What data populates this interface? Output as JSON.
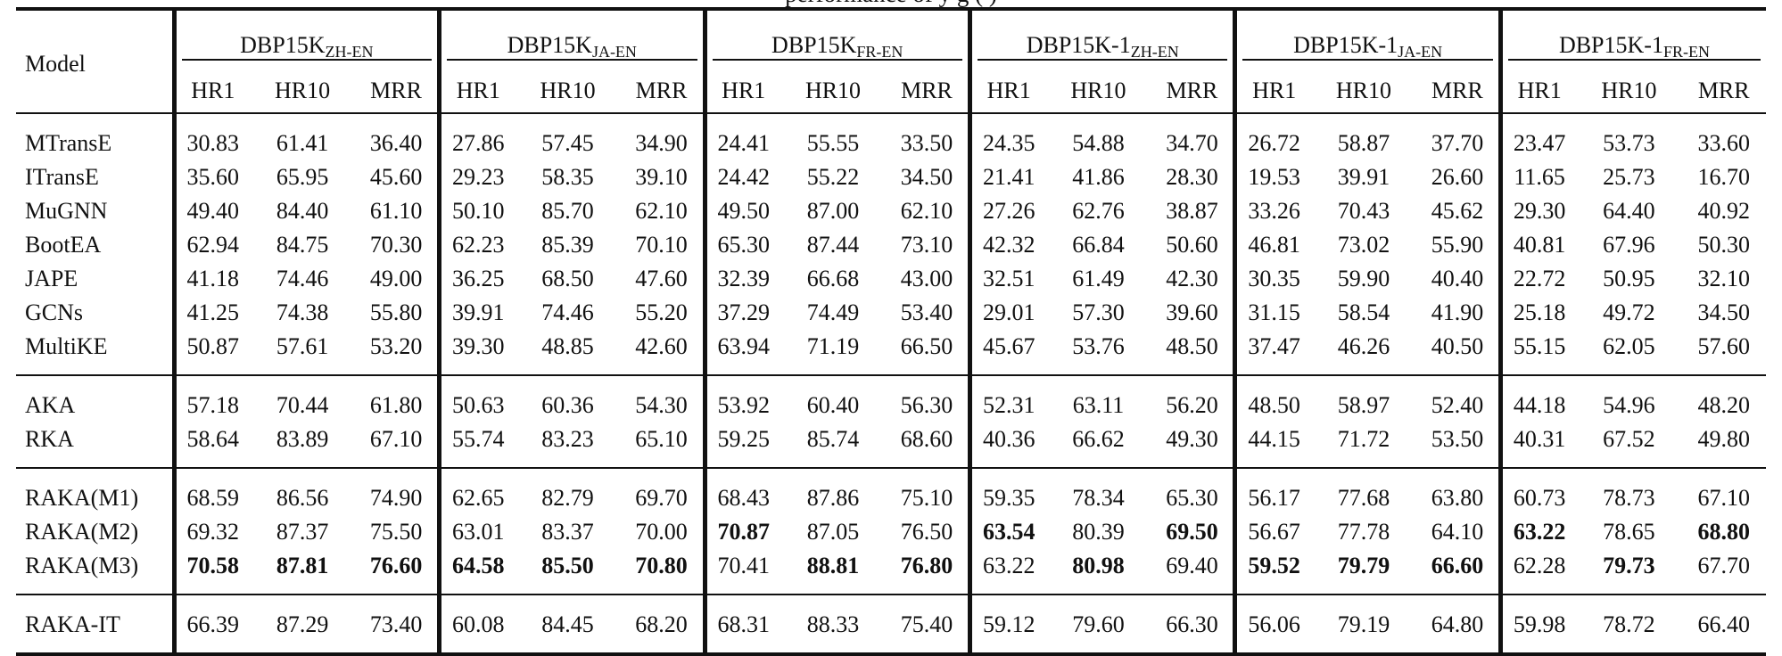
{
  "caption_fragment": "performance of  y  g  ( )",
  "table": {
    "model_header": "Model",
    "groups": [
      {
        "base": "DBP15K",
        "sub": "ZH-EN"
      },
      {
        "base": "DBP15K",
        "sub": "JA-EN"
      },
      {
        "base": "DBP15K",
        "sub": "FR-EN"
      },
      {
        "base": "DBP15K-1",
        "sub": "ZH-EN"
      },
      {
        "base": "DBP15K-1",
        "sub": "JA-EN"
      },
      {
        "base": "DBP15K-1",
        "sub": "FR-EN"
      }
    ],
    "metrics": [
      "HR1",
      "HR10",
      "MRR"
    ],
    "sections": [
      [
        {
          "model": "MTransE",
          "values": [
            "30.83",
            "61.41",
            "36.40",
            "27.86",
            "57.45",
            "34.90",
            "24.41",
            "55.55",
            "33.50",
            "24.35",
            "54.88",
            "34.70",
            "26.72",
            "58.87",
            "37.70",
            "23.47",
            "53.73",
            "33.60"
          ],
          "bold": []
        },
        {
          "model": "ITransE",
          "values": [
            "35.60",
            "65.95",
            "45.60",
            "29.23",
            "58.35",
            "39.10",
            "24.42",
            "55.22",
            "34.50",
            "21.41",
            "41.86",
            "28.30",
            "19.53",
            "39.91",
            "26.60",
            "11.65",
            "25.73",
            "16.70"
          ],
          "bold": []
        },
        {
          "model": "MuGNN",
          "values": [
            "49.40",
            "84.40",
            "61.10",
            "50.10",
            "85.70",
            "62.10",
            "49.50",
            "87.00",
            "62.10",
            "27.26",
            "62.76",
            "38.87",
            "33.26",
            "70.43",
            "45.62",
            "29.30",
            "64.40",
            "40.92"
          ],
          "bold": []
        },
        {
          "model": "BootEA",
          "values": [
            "62.94",
            "84.75",
            "70.30",
            "62.23",
            "85.39",
            "70.10",
            "65.30",
            "87.44",
            "73.10",
            "42.32",
            "66.84",
            "50.60",
            "46.81",
            "73.02",
            "55.90",
            "40.81",
            "67.96",
            "50.30"
          ],
          "bold": []
        },
        {
          "model": "JAPE",
          "values": [
            "41.18",
            "74.46",
            "49.00",
            "36.25",
            "68.50",
            "47.60",
            "32.39",
            "66.68",
            "43.00",
            "32.51",
            "61.49",
            "42.30",
            "30.35",
            "59.90",
            "40.40",
            "22.72",
            "50.95",
            "32.10"
          ],
          "bold": []
        },
        {
          "model": "GCNs",
          "values": [
            "41.25",
            "74.38",
            "55.80",
            "39.91",
            "74.46",
            "55.20",
            "37.29",
            "74.49",
            "53.40",
            "29.01",
            "57.30",
            "39.60",
            "31.15",
            "58.54",
            "41.90",
            "25.18",
            "49.72",
            "34.50"
          ],
          "bold": []
        },
        {
          "model": "MultiKE",
          "values": [
            "50.87",
            "57.61",
            "53.20",
            "39.30",
            "48.85",
            "42.60",
            "63.94",
            "71.19",
            "66.50",
            "45.67",
            "53.76",
            "48.50",
            "37.47",
            "46.26",
            "40.50",
            "55.15",
            "62.05",
            "57.60"
          ],
          "bold": []
        }
      ],
      [
        {
          "model": "AKA",
          "values": [
            "57.18",
            "70.44",
            "61.80",
            "50.63",
            "60.36",
            "54.30",
            "53.92",
            "60.40",
            "56.30",
            "52.31",
            "63.11",
            "56.20",
            "48.50",
            "58.97",
            "52.40",
            "44.18",
            "54.96",
            "48.20"
          ],
          "bold": []
        },
        {
          "model": "RKA",
          "values": [
            "58.64",
            "83.89",
            "67.10",
            "55.74",
            "83.23",
            "65.10",
            "59.25",
            "85.74",
            "68.60",
            "40.36",
            "66.62",
            "49.30",
            "44.15",
            "71.72",
            "53.50",
            "40.31",
            "67.52",
            "49.80"
          ],
          "bold": []
        }
      ],
      [
        {
          "model": "RAKA(M1)",
          "values": [
            "68.59",
            "86.56",
            "74.90",
            "62.65",
            "82.79",
            "69.70",
            "68.43",
            "87.86",
            "75.10",
            "59.35",
            "78.34",
            "65.30",
            "56.17",
            "77.68",
            "63.80",
            "60.73",
            "78.73",
            "67.10"
          ],
          "bold": []
        },
        {
          "model": "RAKA(M2)",
          "values": [
            "69.32",
            "87.37",
            "75.50",
            "63.01",
            "83.37",
            "70.00",
            "70.87",
            "87.05",
            "76.50",
            "63.54",
            "80.39",
            "69.50",
            "56.67",
            "77.78",
            "64.10",
            "63.22",
            "78.65",
            "68.80"
          ],
          "bold": [
            6,
            9,
            11,
            15,
            17
          ]
        },
        {
          "model": "RAKA(M3)",
          "values": [
            "70.58",
            "87.81",
            "76.60",
            "64.58",
            "85.50",
            "70.80",
            "70.41",
            "88.81",
            "76.80",
            "63.22",
            "80.98",
            "69.40",
            "59.52",
            "79.79",
            "66.60",
            "62.28",
            "79.73",
            "67.70"
          ],
          "bold": [
            0,
            1,
            2,
            3,
            4,
            5,
            7,
            8,
            10,
            12,
            13,
            14,
            16
          ]
        }
      ],
      [
        {
          "model": "RAKA-IT",
          "values": [
            "66.39",
            "87.29",
            "73.40",
            "60.08",
            "84.45",
            "68.20",
            "68.31",
            "88.33",
            "75.40",
            "59.12",
            "79.60",
            "66.30",
            "56.06",
            "79.19",
            "64.80",
            "59.98",
            "78.72",
            "66.40"
          ],
          "bold": []
        }
      ]
    ]
  }
}
